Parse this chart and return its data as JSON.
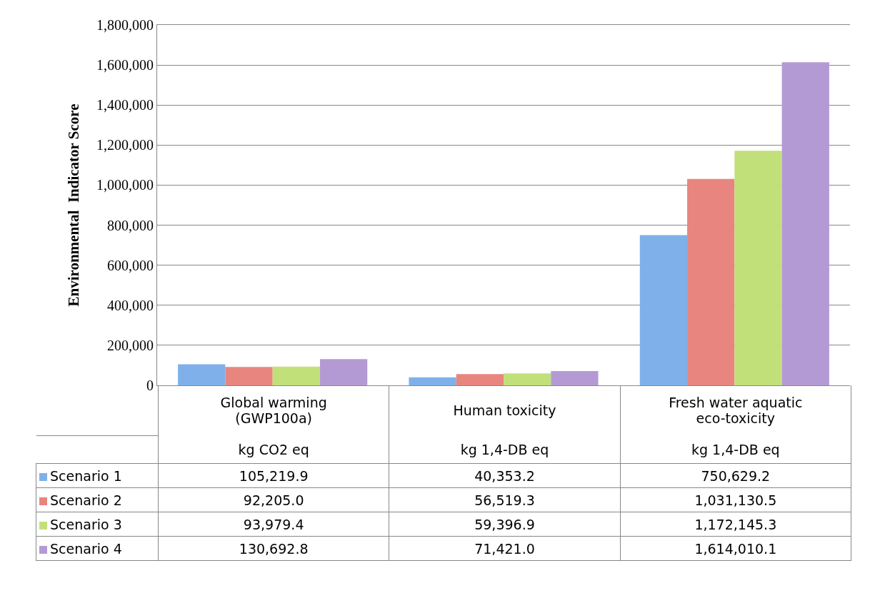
{
  "chart_data": {
    "type": "bar",
    "ylabel": "Environmental  Indicator Score",
    "categories": [
      "Global warming (GWP100a)",
      "Human toxicity",
      "Fresh water aquatic eco-toxicity"
    ],
    "annotations": [
      "kg CO2 eq",
      "kg 1,4-DB eq",
      "kg 1,4-DB eq"
    ],
    "series": [
      {
        "name": "Scenario 1",
        "color": "#7fb0ea",
        "values": [
          105219.9,
          40353.2,
          750629.2
        ],
        "value_labels": [
          "105,219.9",
          "40,353.2",
          "750,629.2"
        ]
      },
      {
        "name": "Scenario 2",
        "color": "#e8857f",
        "values": [
          92205.0,
          56519.3,
          1031130.5
        ],
        "value_labels": [
          "92,205.0",
          "56,519.3",
          "1,031,130.5"
        ]
      },
      {
        "name": "Scenario 3",
        "color": "#c2e07a",
        "values": [
          93979.4,
          59396.9,
          1172145.3
        ],
        "value_labels": [
          "93,979.4",
          "59,396.9",
          "1,172,145.3"
        ]
      },
      {
        "name": "Scenario 4",
        "color": "#b49ad4",
        "values": [
          130692.8,
          71421.0,
          1614010.1
        ],
        "value_labels": [
          "130,692.8",
          "71,421.0",
          "1,614,010.1"
        ]
      }
    ],
    "ylim": [
      0,
      1800000
    ],
    "yticks": [
      0,
      {
        "value": 200000,
        "label": "200,000"
      },
      {
        "value": 400000,
        "label": "400,000"
      },
      {
        "value": 600000,
        "label": "600,000"
      },
      {
        "value": 800000,
        "label": "800,000"
      },
      {
        "value": 1000000,
        "label": "1,000,000"
      },
      {
        "value": 1200000,
        "label": "1,200,000"
      },
      {
        "value": 1400000,
        "label": "1,400,000"
      },
      {
        "value": 1600000,
        "label": "1,600,000"
      },
      {
        "value": 1800000,
        "label": "1,800,000"
      }
    ],
    "grid": "y",
    "legend": "bottom",
    "data_labels": true
  }
}
